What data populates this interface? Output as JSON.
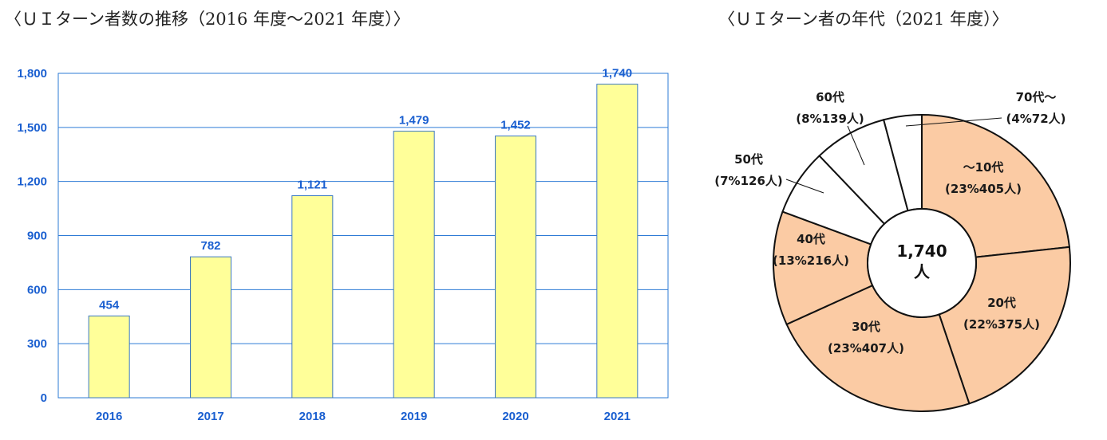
{
  "titles": {
    "left": "〈ＵＩターン者数の推移（2016 年度～2021 年度）〉",
    "right": "〈ＵＩターン者の年代（2021 年度）〉"
  },
  "chart_data": [
    {
      "type": "bar",
      "title": "〈ＵＩターン者数の推移（2016 年度～2021 年度）〉",
      "categories": [
        "2016",
        "2017",
        "2018",
        "2019",
        "2020",
        "2021"
      ],
      "values": [
        454,
        782,
        1121,
        1479,
        1452,
        1740
      ],
      "value_labels": [
        "454",
        "782",
        "1,121",
        "1,479",
        "1,452",
        "1,740"
      ],
      "ylim": [
        0,
        1800
      ],
      "yticks": [
        0,
        300,
        600,
        900,
        1200,
        1500,
        1800
      ],
      "ytick_labels": [
        "0",
        "300",
        "600",
        "900",
        "1,200",
        "1,500",
        "1,800"
      ],
      "grid": true,
      "colors": {
        "bar_fill": "#ffff99",
        "bar_stroke": "#3a78c2",
        "grid": "#2e7bd6",
        "label": "#1a5fd0"
      }
    },
    {
      "type": "pie",
      "title": "〈ＵＩターン者の年代（2021 年度）〉",
      "donut": true,
      "center_label": [
        "1,740",
        "人"
      ],
      "total": 1740,
      "slices": [
        {
          "name": "～10代",
          "percent": 23,
          "count": 405,
          "label": [
            "～10代",
            "(23%405人)"
          ],
          "fill": "#fbcba4"
        },
        {
          "name": "20代",
          "percent": 22,
          "count": 375,
          "label": [
            "20代",
            "(22%375人)"
          ],
          "fill": "#fbcba4"
        },
        {
          "name": "30代",
          "percent": 23,
          "count": 407,
          "label": [
            "30代",
            "(23%407人)"
          ],
          "fill": "#fbcba4"
        },
        {
          "name": "40代",
          "percent": 13,
          "count": 216,
          "label": [
            "40代",
            "(13%216人)"
          ],
          "fill": "#fbcba4"
        },
        {
          "name": "50代",
          "percent": 7,
          "count": 126,
          "label": [
            "50代",
            "(7%126人)"
          ],
          "fill": "#ffffff"
        },
        {
          "name": "60代",
          "percent": 8,
          "count": 139,
          "label": [
            "60代",
            "(8%139人)"
          ],
          "fill": "#ffffff"
        },
        {
          "name": "70代～",
          "percent": 4,
          "count": 72,
          "label": [
            "70代～",
            "(4%72人)"
          ],
          "fill": "#ffffff"
        }
      ]
    }
  ]
}
